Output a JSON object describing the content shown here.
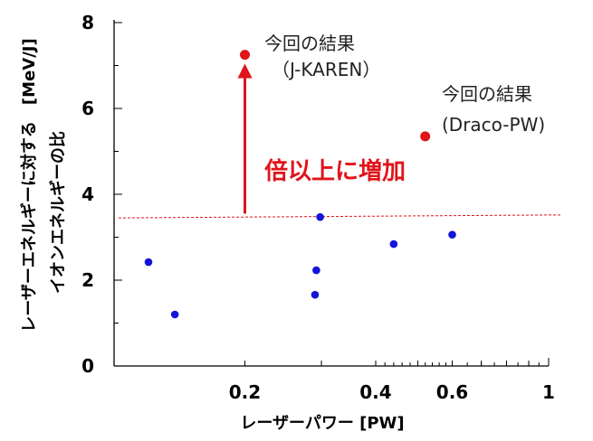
{
  "chart_data": {
    "type": "scatter",
    "title": "",
    "xlabel": "レーザーパワー [PW]",
    "ylabel_line1": "レーザーエネルギーに対する　[MeV/J]",
    "ylabel_line2": "イオンエネルギーの比",
    "xscale": "log",
    "xlim": [
      0.1,
      1.0
    ],
    "ylim": [
      0,
      8
    ],
    "xticks": [
      {
        "value": 0.2,
        "label": "0.2"
      },
      {
        "value": 0.4,
        "label": "0.4"
      },
      {
        "value": 0.6,
        "label": "0.6"
      },
      {
        "value": 1.0,
        "label": "1"
      }
    ],
    "yticks": [
      {
        "value": 0,
        "label": "0"
      },
      {
        "value": 2,
        "label": "2"
      },
      {
        "value": 4,
        "label": "4"
      },
      {
        "value": 6,
        "label": "6"
      },
      {
        "value": 8,
        "label": "8"
      }
    ],
    "series": [
      {
        "color": "#1414d8",
        "points": [
          {
            "x": 0.12,
            "y": 2.42
          },
          {
            "x": 0.138,
            "y": 1.2
          },
          {
            "x": 0.29,
            "y": 1.66
          },
          {
            "x": 0.292,
            "y": 2.23
          },
          {
            "x": 0.298,
            "y": 3.47
          },
          {
            "x": 0.44,
            "y": 2.84
          },
          {
            "x": 0.6,
            "y": 3.06
          }
        ]
      },
      {
        "color": "#e0141a",
        "points": [
          {
            "x": 0.2,
            "y": 7.25
          },
          {
            "x": 0.52,
            "y": 5.35
          }
        ]
      }
    ],
    "reference_line": {
      "color": "#e0141a",
      "y_left": 3.45,
      "y_right": 3.52,
      "style": "dashed"
    },
    "arrow": {
      "color": "#e0141a",
      "x": 0.2,
      "y_from": 3.55,
      "y_to": 7.0
    },
    "annotations": {
      "jkaren_line1": "今回の結果",
      "jkaren_line2": "（J-KAREN）",
      "draco_line1": "今回の結果",
      "draco_line2": "(Draco-PW)",
      "increase": "倍以上に増加"
    }
  }
}
